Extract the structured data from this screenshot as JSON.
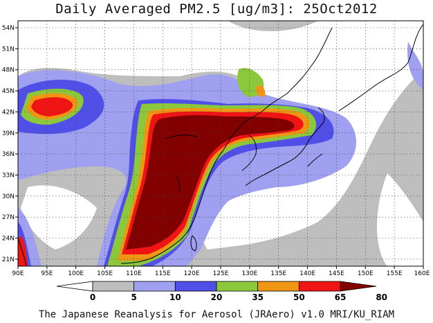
{
  "title": "Daily Averaged PM2.5 [ug/m3]: 25Oct2012",
  "footer": "The Japanese Reanalysis for Aerosol (JRAero) v1.0 MRI/KU_RIAM",
  "map": {
    "lon_range": [
      90,
      160
    ],
    "lat_range": [
      20,
      55
    ],
    "lon_labels": [
      "90E",
      "95E",
      "100E",
      "105E",
      "110E",
      "115E",
      "120E",
      "125E",
      "130E",
      "135E",
      "140E",
      "145E",
      "150E",
      "155E",
      "160E"
    ],
    "lat_labels": [
      "21N",
      "24N",
      "27N",
      "30N",
      "33N",
      "36N",
      "39N",
      "42N",
      "45N",
      "48N",
      "51N",
      "54N"
    ]
  },
  "colorbar": {
    "levels": [
      "0",
      "5",
      "10",
      "20",
      "35",
      "50",
      "65",
      "80"
    ],
    "colors": [
      "#ffffff",
      "#bebebe",
      "#a0a0f0",
      "#5050e8",
      "#8cc83c",
      "#f09614",
      "#f01414",
      "#820000"
    ]
  }
}
